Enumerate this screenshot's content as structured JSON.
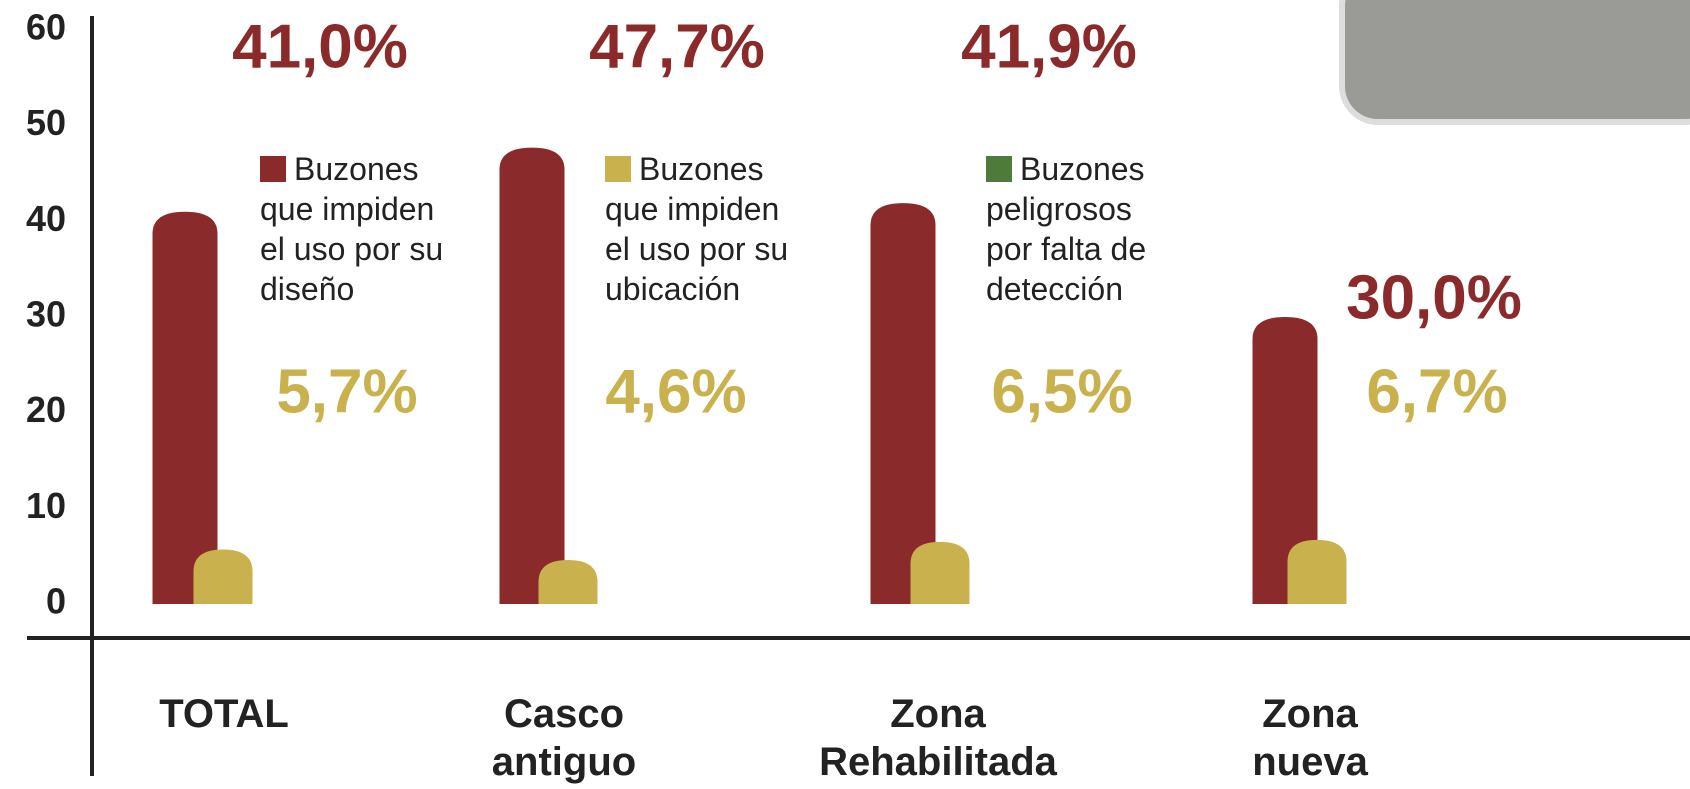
{
  "chart_data": {
    "type": "bar",
    "categories": [
      "TOTAL",
      "Casco antiguo",
      "Zona Rehabilitada",
      "Zona nueva"
    ],
    "series": [
      {
        "name": "Buzones que impiden el uso por su diseño",
        "color": "#8b2a2a",
        "values": [
          41.0,
          47.7,
          41.9,
          30.0
        ],
        "value_labels": [
          "41,0%",
          "47,7%",
          "41,9%",
          "30,0%"
        ]
      },
      {
        "name": "Buzones que impiden el uso por su ubicación",
        "color": "#c9b24e",
        "values": [
          5.7,
          4.6,
          6.5,
          6.7
        ],
        "value_labels": [
          "5,7%",
          "4,6%",
          "6,5%",
          "6,7%"
        ]
      },
      {
        "name": "Buzones peligrosos por falta de detección",
        "color": "#4e7a3a",
        "values": [
          null,
          null,
          null,
          null
        ]
      }
    ],
    "ylim": [
      0,
      60
    ],
    "yticks": [
      0,
      10,
      20,
      30,
      40,
      50,
      60
    ],
    "grid": false
  }
}
